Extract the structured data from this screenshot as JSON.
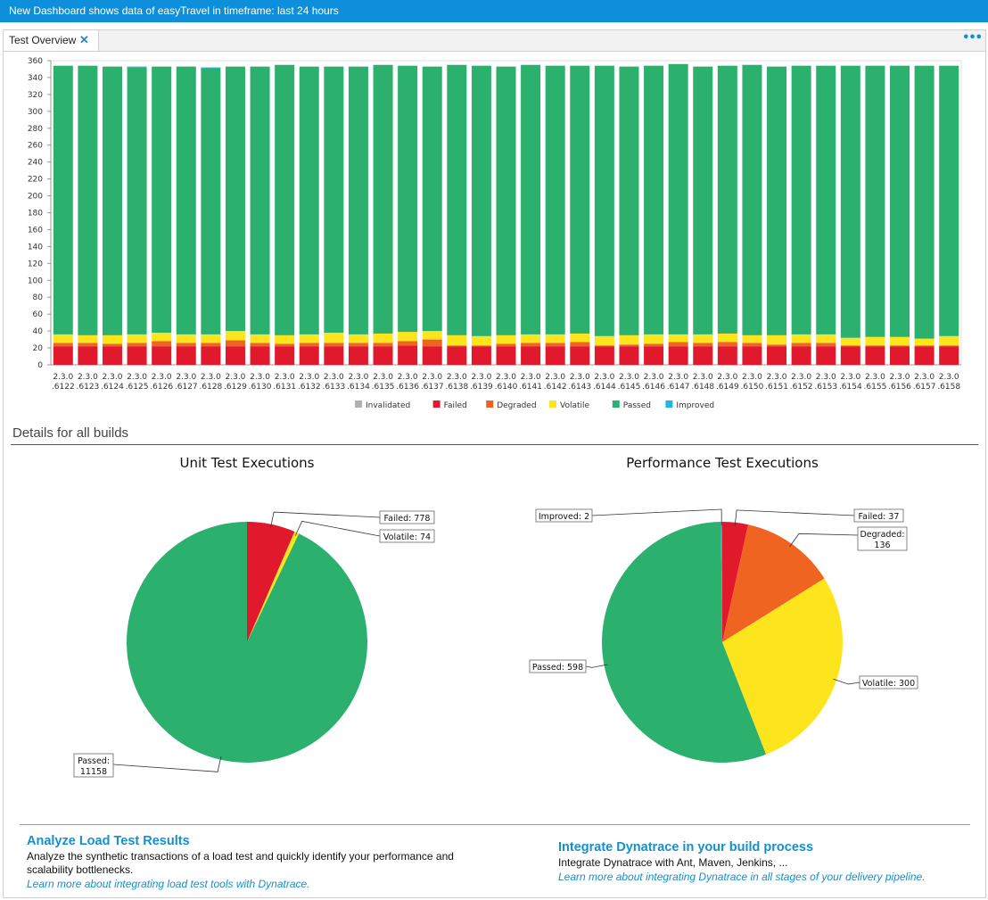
{
  "titlebar": {
    "title": "New Dashboard shows data of easyTravel in timeframe: last 24 hours"
  },
  "tab": {
    "label": "Test Overview",
    "close_glyph": "✕",
    "more_glyph": "•••"
  },
  "colors": {
    "Invalidated": "#b0b0b0",
    "Failed": "#e0192c",
    "Degraded": "#f06422",
    "Volatile": "#fde51e",
    "Passed": "#2bb06e",
    "Improved": "#1fb6e6"
  },
  "details": {
    "title": "Details for all builds"
  },
  "chart_data": [
    {
      "type": "bar",
      "stacked": true,
      "title": "",
      "xlabel": "",
      "ylabel": "",
      "ylim": [
        0,
        360
      ],
      "yticks": [
        0,
        20,
        40,
        60,
        80,
        100,
        120,
        140,
        160,
        180,
        200,
        220,
        240,
        260,
        280,
        300,
        320,
        340,
        360
      ],
      "legend_position": "bottom",
      "categories": [
        "2.3.0 .6122",
        "2.3.0 .6123",
        "2.3.0 .6124",
        "2.3.0 .6125",
        "2.3.0 .6126",
        "2.3.0 .6127",
        "2.3.0 .6128",
        "2.3.0 .6129",
        "2.3.0 .6130",
        "2.3.0 .6131",
        "2.3.0 .6132",
        "2.3.0 .6133",
        "2.3.0 .6134",
        "2.3.0 .6135",
        "2.3.0 .6136",
        "2.3.0 .6137",
        "2.3.0 .6138",
        "2.3.0 .6139",
        "2.3.0 .6140",
        "2.3.0 .6141",
        "2.3.0 .6142",
        "2.3.0 .6143",
        "2.3.0 .6144",
        "2.3.0 .6145",
        "2.3.0 .6146",
        "2.3.0 .6147",
        "2.3.0 .6148",
        "2.3.0 .6149",
        "2.3.0 .6150",
        "2.3.0 .6151",
        "2.3.0 .6152",
        "2.3.0 .6153",
        "2.3.0 .6154",
        "2.3.0 .6155",
        "2.3.0 .6156",
        "2.3.0 .6157",
        "2.3.0 .6158"
      ],
      "series": [
        {
          "name": "Invalidated",
          "values": [
            0,
            0,
            0,
            0,
            0,
            0,
            0,
            0,
            0,
            0,
            0,
            0,
            0,
            0,
            0,
            0,
            0,
            0,
            0,
            0,
            0,
            0,
            0,
            0,
            0,
            0,
            0,
            0,
            0,
            0,
            0,
            0,
            0,
            0,
            0,
            0,
            0
          ]
        },
        {
          "name": "Failed",
          "values": [
            22,
            22,
            22,
            22,
            22,
            22,
            22,
            22,
            22,
            22,
            22,
            22,
            22,
            22,
            23,
            22,
            22,
            22,
            22,
            22,
            22,
            22,
            22,
            22,
            22,
            22,
            22,
            22,
            22,
            22,
            22,
            22,
            22,
            22,
            22,
            22,
            22
          ]
        },
        {
          "name": "Degraded",
          "values": [
            4,
            4,
            3,
            4,
            6,
            4,
            4,
            7,
            4,
            3,
            4,
            4,
            4,
            4,
            5,
            8,
            1,
            1,
            3,
            4,
            4,
            5,
            1,
            2,
            3,
            5,
            4,
            5,
            4,
            2,
            4,
            4,
            1,
            1,
            1,
            1,
            1
          ]
        },
        {
          "name": "Volatile",
          "values": [
            10,
            9,
            10,
            10,
            10,
            10,
            10,
            11,
            10,
            10,
            10,
            12,
            10,
            11,
            11,
            10,
            12,
            11,
            10,
            10,
            10,
            10,
            11,
            11,
            11,
            9,
            10,
            10,
            9,
            11,
            10,
            10,
            9,
            10,
            10,
            8,
            11
          ]
        },
        {
          "name": "Passed",
          "values": [
            318,
            319,
            318,
            316,
            315,
            317,
            315,
            313,
            317,
            320,
            317,
            315,
            317,
            318,
            315,
            313,
            320,
            320,
            318,
            319,
            318,
            317,
            320,
            318,
            318,
            320,
            317,
            317,
            320,
            318,
            318,
            318,
            322,
            321,
            321,
            323,
            320
          ]
        },
        {
          "name": "Improved",
          "values": [
            0,
            0,
            0,
            1,
            0,
            0,
            1,
            0,
            0,
            0,
            0,
            0,
            0,
            0,
            0,
            0,
            0,
            0,
            0,
            0,
            0,
            0,
            0,
            0,
            0,
            0,
            0,
            0,
            0,
            0,
            0,
            0,
            0,
            0,
            0,
            0,
            0
          ]
        }
      ]
    },
    {
      "type": "pie",
      "title": "Unit Test Executions",
      "slices": [
        {
          "label": "Failed",
          "value": 778,
          "display": "Failed: 778"
        },
        {
          "label": "Volatile",
          "value": 74,
          "display": "Volatile: 74"
        },
        {
          "label": "Passed",
          "value": 11158,
          "display": "Passed:\n11158"
        }
      ]
    },
    {
      "type": "pie",
      "title": "Performance Test Executions",
      "slices": [
        {
          "label": "Failed",
          "value": 37,
          "display": "Failed: 37"
        },
        {
          "label": "Degraded",
          "value": 136,
          "display": "Degraded:\n136"
        },
        {
          "label": "Volatile",
          "value": 300,
          "display": "Volatile: 300"
        },
        {
          "label": "Passed",
          "value": 598,
          "display": "Passed: 598"
        },
        {
          "label": "Improved",
          "value": 2,
          "display": "Improved: 2"
        }
      ]
    }
  ],
  "promo_left": {
    "title": "Analyze Load Test Results",
    "text": "Analyze the synthetic transactions of a load test and quickly identify your performance and scalability bottlenecks.",
    "link": "Learn more about integrating load test tools with Dynatrace."
  },
  "promo_right": {
    "title": "Integrate Dynatrace in your build process",
    "text": "Integrate Dynatrace with Ant, Maven, Jenkins, ...",
    "link": "Learn more about integrating Dynatrace in all stages of your delivery pipeline."
  }
}
